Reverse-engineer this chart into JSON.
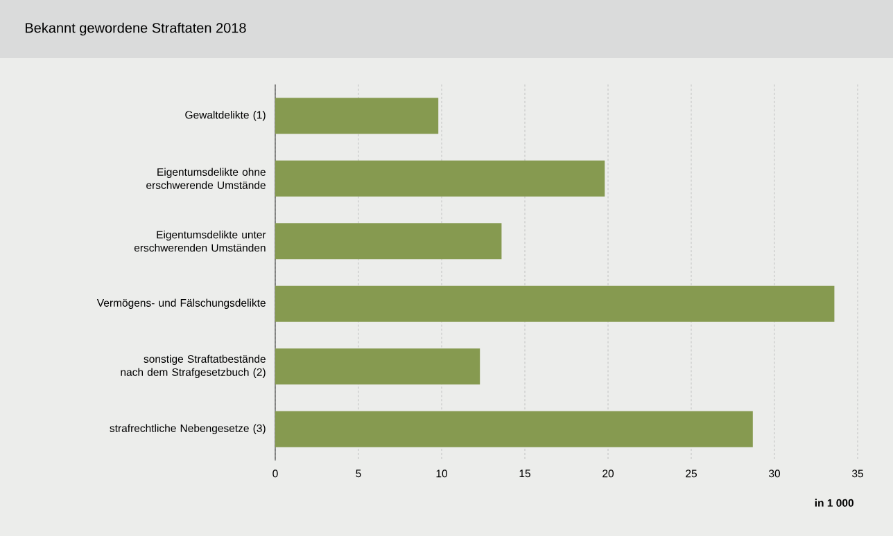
{
  "chart_data": {
    "type": "bar",
    "orientation": "horizontal",
    "title": "Bekannt gewordene Straftaten 2018",
    "xlabel": "in 1 000",
    "categories": [
      "Gewaltdelikte (1)",
      "Eigentumsdelikte ohne erschwerende Umstände",
      "Eigentumsdelikte unter erschwerenden Umständen",
      "Vermögens- und Fälschungsdelikte",
      "sonstige Straftatbestände nach dem Strafgesetzbuch (2)",
      "strafrechtliche Nebengesetze (3)"
    ],
    "values": [
      9.8,
      19.8,
      13.6,
      33.6,
      12.3,
      28.7
    ],
    "color": "#869a50",
    "xlim": [
      0,
      35
    ],
    "xticks": [
      0,
      5,
      10,
      15,
      20,
      25,
      30,
      35
    ],
    "grid": "x"
  }
}
